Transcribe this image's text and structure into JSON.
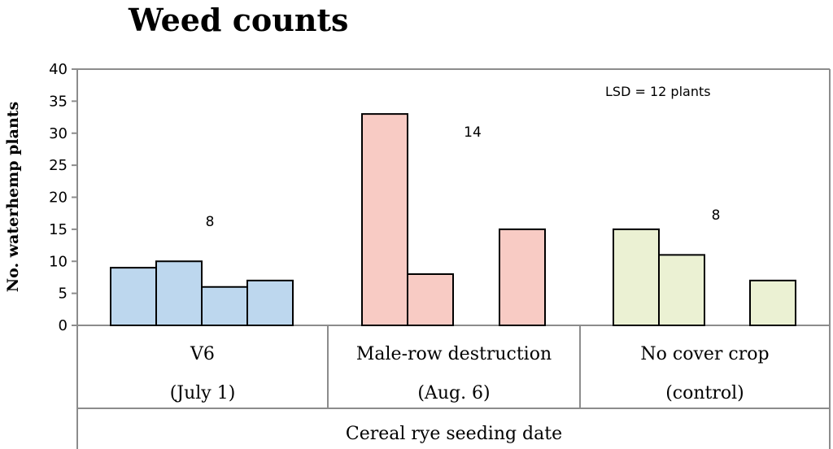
{
  "chart_data": {
    "type": "bar",
    "title": "Weed counts",
    "ylabel": "No. waterhemp plants",
    "xlabel": "Cereal rye seeding date",
    "ylim": [
      0,
      40
    ],
    "yticks": [
      0,
      5,
      10,
      15,
      20,
      25,
      30,
      35,
      40
    ],
    "grid": false,
    "groups": [
      {
        "name": "V6",
        "subname": "(July 1)",
        "color": "#bdd7ee",
        "values": [
          9,
          10,
          6,
          7
        ],
        "annotation": "8"
      },
      {
        "name": "Male-row destruction",
        "subname": "(Aug. 6)",
        "color": "#f8cbc4",
        "values": [
          33,
          8,
          null,
          15
        ],
        "annotation": "14"
      },
      {
        "name": "No cover crop",
        "subname": "(control)",
        "color": "#ebf1d3",
        "values": [
          15,
          11,
          null,
          7
        ],
        "annotation": "8"
      }
    ],
    "note": "LSD = 12 plants"
  }
}
